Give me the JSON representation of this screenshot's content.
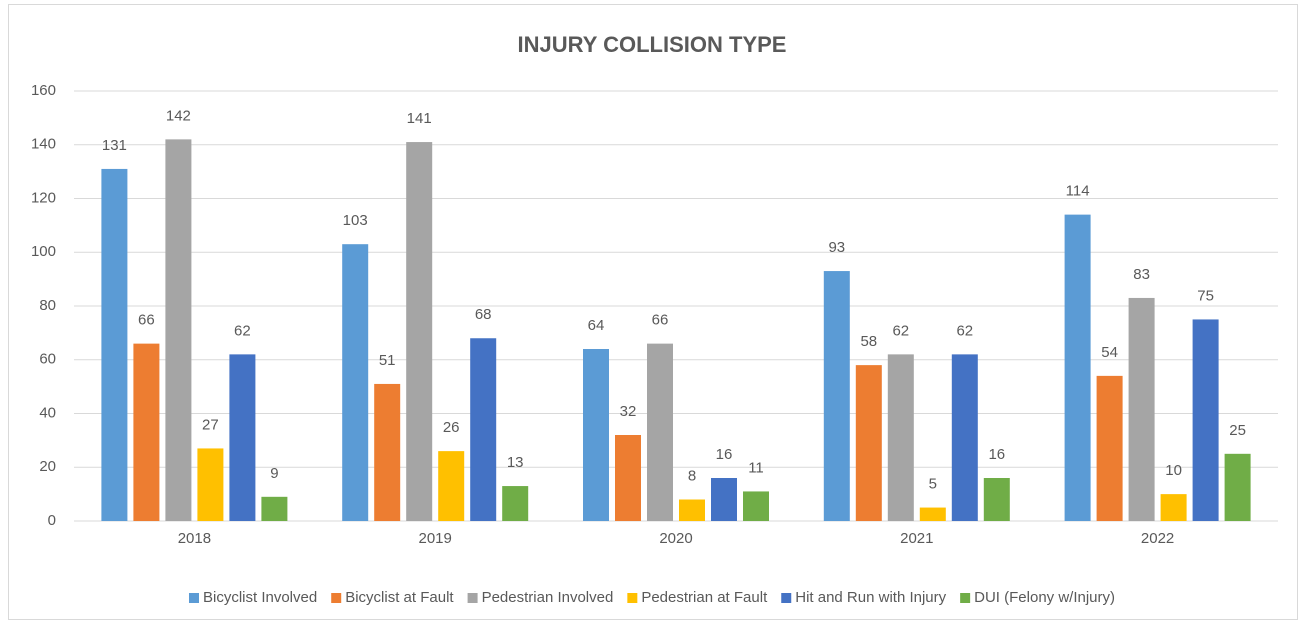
{
  "chart_data": {
    "type": "bar",
    "title": "INJURY COLLISION TYPE",
    "categories": [
      "2018",
      "2019",
      "2020",
      "2021",
      "2022"
    ],
    "series": [
      {
        "name": "Bicyclist Involved",
        "color": "#5b9bd5",
        "values": [
          131,
          103,
          64,
          93,
          114
        ]
      },
      {
        "name": "Bicyclist at Fault",
        "color": "#ed7d31",
        "values": [
          66,
          51,
          32,
          58,
          54
        ]
      },
      {
        "name": "Pedestrian Involved",
        "color": "#a5a5a5",
        "values": [
          142,
          141,
          66,
          62,
          83
        ]
      },
      {
        "name": "Pedestrian at Fault",
        "color": "#ffc000",
        "values": [
          27,
          26,
          8,
          5,
          10
        ]
      },
      {
        "name": "Hit and Run with Injury",
        "color": "#4472c4",
        "values": [
          62,
          68,
          16,
          62,
          75
        ]
      },
      {
        "name": "DUI (Felony w/Injury)",
        "color": "#70ad47",
        "values": [
          9,
          13,
          11,
          16,
          25
        ]
      }
    ],
    "ylim": [
      0,
      160
    ],
    "yticks": [
      0,
      20,
      40,
      60,
      80,
      100,
      120,
      140,
      160
    ],
    "grid": true,
    "legend": "bottom"
  }
}
